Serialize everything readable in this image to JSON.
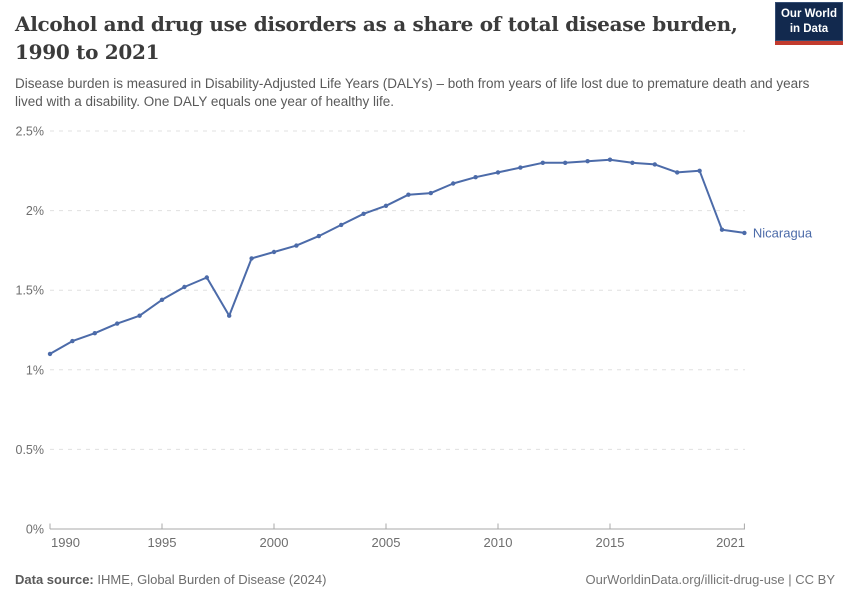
{
  "header": {
    "title_line1": "Alcohol and drug use disorders as a share of total disease burden,",
    "title_line2": "1990 to 2021",
    "subtitle": "Disease burden is measured in Disability-Adjusted Life Years (DALYs) – both from years of life lost due to premature death and years lived with a disability. One DALY equals one year of healthy life.",
    "logo": {
      "line1": "Our World",
      "line2": "in Data",
      "bg_color": "#12294e",
      "accent_color": "#c23b2e"
    }
  },
  "chart_data": {
    "type": "line",
    "title": "Alcohol and drug use disorders as a share of total disease burden, 1990 to 2021",
    "xlabel": "",
    "ylabel": "",
    "unit": "%",
    "xlim": [
      1990,
      2021
    ],
    "ylim": [
      0,
      2.5
    ],
    "x_ticks": [
      1990,
      1995,
      2000,
      2005,
      2010,
      2015,
      2021
    ],
    "y_ticks_percent": [
      0,
      0.5,
      1,
      1.5,
      2,
      2.5
    ],
    "grid": "dashed-horizontal",
    "legend_position": "end-of-line-label",
    "line_color": "#4c6ba9",
    "axis_color": "#a8a8a8",
    "grid_color": "#e0e0e0",
    "tick_label_color": "#6e6e6e",
    "series": [
      {
        "name": "Nicaragua",
        "x": [
          1990,
          1991,
          1992,
          1993,
          1994,
          1995,
          1996,
          1997,
          1998,
          1999,
          2000,
          2001,
          2002,
          2003,
          2004,
          2005,
          2006,
          2007,
          2008,
          2009,
          2010,
          2011,
          2012,
          2013,
          2014,
          2015,
          2016,
          2017,
          2018,
          2019,
          2020,
          2021
        ],
        "values": [
          1.1,
          1.18,
          1.23,
          1.29,
          1.34,
          1.44,
          1.52,
          1.58,
          1.34,
          1.7,
          1.74,
          1.78,
          1.84,
          1.91,
          1.98,
          2.03,
          2.1,
          2.11,
          2.17,
          2.21,
          2.24,
          2.27,
          2.3,
          2.3,
          2.31,
          2.32,
          2.3,
          2.29,
          2.24,
          2.25,
          1.88,
          1.86
        ]
      }
    ]
  },
  "footer": {
    "source_label": "Data source:",
    "source_text": " IHME, Global Burden of Disease (2024)",
    "link_text": "OurWorldinData.org/illicit-drug-use",
    "license_text": " | CC BY"
  }
}
